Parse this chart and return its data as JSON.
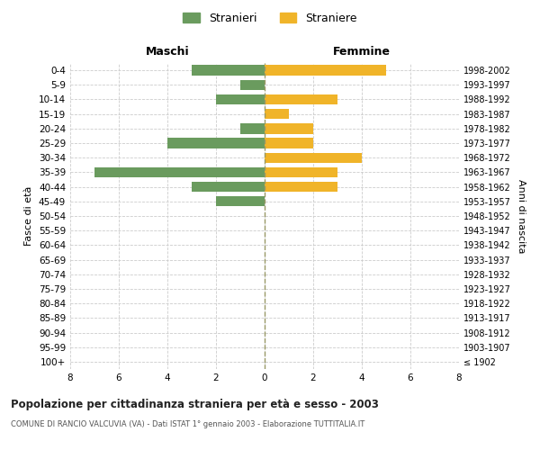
{
  "age_groups": [
    "100+",
    "95-99",
    "90-94",
    "85-89",
    "80-84",
    "75-79",
    "70-74",
    "65-69",
    "60-64",
    "55-59",
    "50-54",
    "45-49",
    "40-44",
    "35-39",
    "30-34",
    "25-29",
    "20-24",
    "15-19",
    "10-14",
    "5-9",
    "0-4"
  ],
  "birth_years": [
    "≤ 1902",
    "1903-1907",
    "1908-1912",
    "1913-1917",
    "1918-1922",
    "1923-1927",
    "1928-1932",
    "1933-1937",
    "1938-1942",
    "1943-1947",
    "1948-1952",
    "1953-1957",
    "1958-1962",
    "1963-1967",
    "1968-1972",
    "1973-1977",
    "1978-1982",
    "1983-1987",
    "1988-1992",
    "1993-1997",
    "1998-2002"
  ],
  "maschi": [
    0,
    0,
    0,
    0,
    0,
    0,
    0,
    0,
    0,
    0,
    0,
    2,
    3,
    7,
    0,
    4,
    1,
    0,
    2,
    1,
    3
  ],
  "femmine": [
    0,
    0,
    0,
    0,
    0,
    0,
    0,
    0,
    0,
    0,
    0,
    0,
    3,
    3,
    4,
    2,
    2,
    1,
    3,
    0,
    5
  ],
  "maschi_color": "#6a9b5e",
  "femmine_color": "#f0b429",
  "title": "Popolazione per cittadinanza straniera per età e sesso - 2003",
  "subtitle": "COMUNE DI RANCIO VALCUVIA (VA) - Dati ISTAT 1° gennaio 2003 - Elaborazione TUTTITALIA.IT",
  "ylabel_left": "Fasce di età",
  "ylabel_right": "Anni di nascita",
  "xlabel_maschi": "Maschi",
  "xlabel_femmine": "Femmine",
  "legend_stranieri": "Stranieri",
  "legend_straniere": "Straniere",
  "xlim": 8,
  "background_color": "#ffffff",
  "grid_color": "#cccccc",
  "center_line_color": "#999966"
}
